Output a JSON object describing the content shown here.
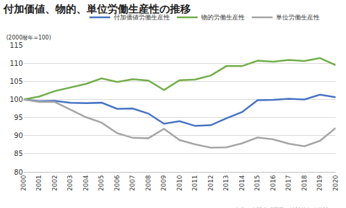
{
  "chart_data": {
    "type": "line",
    "title": "付加価値、物的、単位労働生産性の推移",
    "y_axis_label": "(2000暦年=100)",
    "source": "出典：内閣府「国民経済計算年次推計」",
    "categories": [
      "2000",
      "2001",
      "2002",
      "2003",
      "2004",
      "2005",
      "2006",
      "2007",
      "2008",
      "2009",
      "2010",
      "2011",
      "2012",
      "2013",
      "2014",
      "2015",
      "2016",
      "2017",
      "2018",
      "2019",
      "2020"
    ],
    "series": [
      {
        "name": "付加価値労働生産性",
        "color": "#4472c4",
        "values": [
          100,
          99.5,
          99.6,
          99.1,
          99.0,
          99.1,
          97.4,
          97.5,
          96.1,
          93.3,
          94.0,
          92.7,
          92.9,
          94.8,
          96.5,
          99.8,
          99.9,
          100.2,
          100.0,
          101.3,
          100.6
        ]
      },
      {
        "name": "物的労働生産性",
        "color": "#70ad47",
        "values": [
          100,
          100.8,
          102.3,
          103.3,
          104.3,
          105.8,
          104.8,
          105.6,
          105.2,
          102.6,
          105.3,
          105.5,
          106.6,
          109.2,
          109.2,
          110.7,
          110.4,
          110.9,
          110.6,
          111.4,
          109.5
        ]
      },
      {
        "name": "単位労働生産性",
        "color": "#a5a5a5",
        "values": [
          100,
          99.3,
          99.3,
          97.2,
          95.1,
          93.6,
          90.7,
          89.4,
          89.3,
          91.9,
          88.8,
          87.6,
          86.7,
          86.8,
          87.9,
          89.5,
          89.0,
          87.8,
          87.1,
          88.6,
          92.1
        ]
      }
    ],
    "ylim": [
      80,
      115
    ],
    "yticks": [
      80,
      85,
      90,
      95,
      100,
      105,
      110,
      115
    ],
    "grid": true,
    "legend": "top"
  }
}
